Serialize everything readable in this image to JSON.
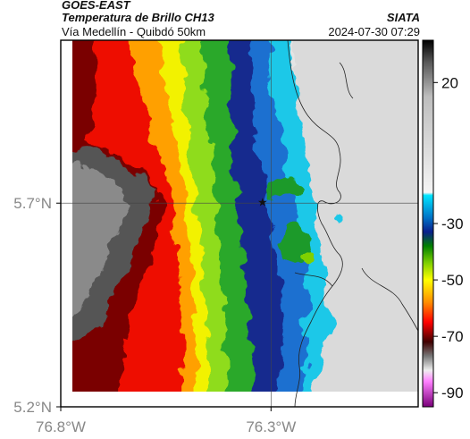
{
  "header": {
    "satellite": "GOES-EAST",
    "product": "Temperatura de Brillo CH13",
    "region": "Vía Medellín - Quibdó 50km",
    "organization": "SIATA",
    "timestamp": "2024-07-30 07:29"
  },
  "map": {
    "lat_range": [
      5.2,
      6.1
    ],
    "lon_range": [
      -76.8,
      -75.95
    ],
    "lat_ticks": [
      {
        "value": 5.7,
        "label": "5.7°N"
      },
      {
        "value": 5.2,
        "label": "5.2°N"
      }
    ],
    "lon_ticks": [
      {
        "value": -76.8,
        "label": "76.8°W"
      },
      {
        "value": -76.3,
        "label": "76.3°W"
      }
    ],
    "gridlines": {
      "lat": 5.7,
      "lon": -76.3
    },
    "marker": {
      "symbol": "★",
      "lat": 5.7,
      "lon": -76.32,
      "name": "station-marker"
    }
  },
  "colorbar": {
    "unit_range": [
      -95,
      35
    ],
    "labels": [
      {
        "value": 20,
        "text": "20"
      },
      {
        "value": -30,
        "text": "-30"
      },
      {
        "value": -50,
        "text": "-50"
      },
      {
        "value": -70,
        "text": "-70"
      },
      {
        "value": -90,
        "text": "-90"
      }
    ],
    "stops": [
      {
        "value": 35,
        "color": "#000000"
      },
      {
        "value": 27,
        "color": "#5a5a5a"
      },
      {
        "value": 15,
        "color": "#bdbdbd"
      },
      {
        "value": -19,
        "color": "#f5f5f5"
      },
      {
        "value": -20,
        "color": "#00e5ff"
      },
      {
        "value": -28,
        "color": "#0072c6"
      },
      {
        "value": -33,
        "color": "#0a1f8c"
      },
      {
        "value": -38,
        "color": "#008000"
      },
      {
        "value": -44,
        "color": "#7fd000"
      },
      {
        "value": -50,
        "color": "#ffff00"
      },
      {
        "value": -58,
        "color": "#ff8c00"
      },
      {
        "value": -65,
        "color": "#ff0000"
      },
      {
        "value": -72,
        "color": "#400000"
      },
      {
        "value": -77,
        "color": "#777777"
      },
      {
        "value": -82,
        "color": "#eeeeee"
      },
      {
        "value": -86,
        "color": "#ff80ff"
      },
      {
        "value": -95,
        "color": "#7a007a"
      }
    ]
  }
}
